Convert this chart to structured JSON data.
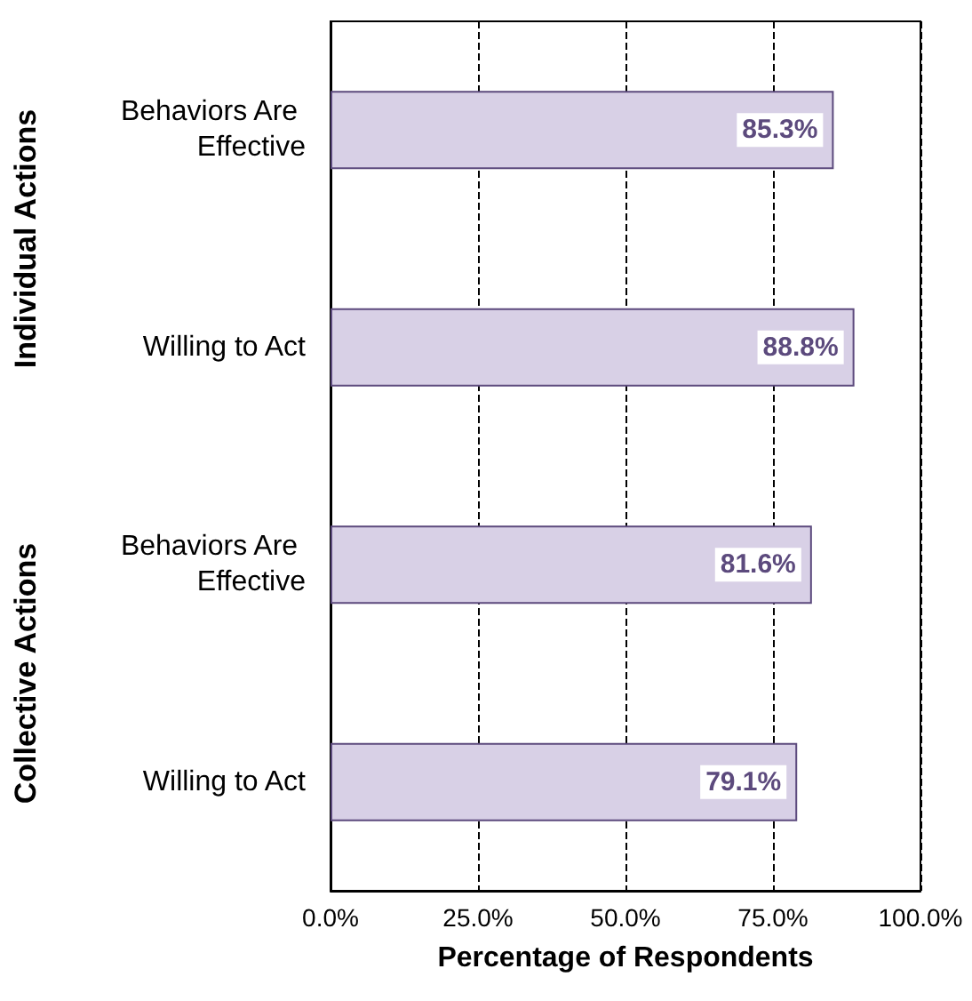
{
  "chart_data": {
    "type": "bar",
    "orientation": "horizontal",
    "categories": [
      "Behaviors Are Effective",
      "Willing to Act",
      "Behaviors Are Effective",
      "Willing to Act"
    ],
    "values": [
      85.3,
      88.8,
      81.6,
      79.1
    ],
    "value_labels": [
      "85.3%",
      "88.8%",
      "81.6%",
      "79.1%"
    ],
    "color": "#d8d0e6",
    "xlabel": "Percentage of Respondents",
    "xlim": [
      0,
      100
    ],
    "xticks": [
      {
        "value": 0,
        "label": "0.0%"
      },
      {
        "value": 25,
        "label": "25.0%"
      },
      {
        "value": 50,
        "label": "50.0%"
      },
      {
        "value": 75,
        "label": "75.0%"
      },
      {
        "value": 100,
        "label": "100.0%"
      }
    ],
    "grid": "x",
    "line_style": "dashed",
    "annotations": [
      "Individual Actions",
      "Collective Actions"
    ]
  }
}
